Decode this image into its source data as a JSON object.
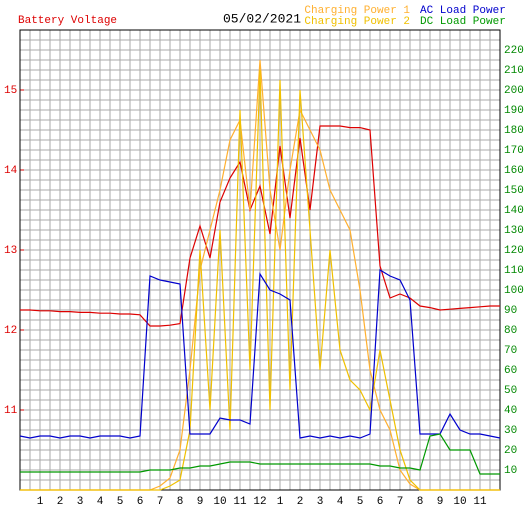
{
  "chart_data": {
    "type": "line",
    "title": "05/02/2021",
    "x": [
      0,
      0.5,
      1,
      1.5,
      2,
      2.5,
      3,
      3.5,
      4,
      4.5,
      5,
      5.5,
      6,
      6.5,
      7,
      7.5,
      8,
      8.5,
      9,
      9.5,
      10,
      10.5,
      11,
      11.5,
      12,
      12.5,
      13,
      13.5,
      14,
      14.5,
      15,
      15.5,
      16,
      16.5,
      17,
      17.5,
      18,
      18.5,
      19,
      19.5,
      20,
      20.5,
      21,
      21.5,
      22,
      22.5,
      23,
      23.5,
      24
    ],
    "xlim": [
      0,
      24
    ],
    "xticks": [
      {
        "value": 1,
        "label": "1"
      },
      {
        "value": 2,
        "label": "2"
      },
      {
        "value": 3,
        "label": "3"
      },
      {
        "value": 4,
        "label": "4"
      },
      {
        "value": 5,
        "label": "5"
      },
      {
        "value": 6,
        "label": "6"
      },
      {
        "value": 7,
        "label": "7"
      },
      {
        "value": 8,
        "label": "8"
      },
      {
        "value": 9,
        "label": "9"
      },
      {
        "value": 10,
        "label": "10"
      },
      {
        "value": 11,
        "label": "11"
      },
      {
        "value": 12,
        "label": "12"
      },
      {
        "value": 13,
        "label": "1"
      },
      {
        "value": 14,
        "label": "2"
      },
      {
        "value": 15,
        "label": "3"
      },
      {
        "value": 16,
        "label": "4"
      },
      {
        "value": 17,
        "label": "5"
      },
      {
        "value": 18,
        "label": "6"
      },
      {
        "value": 19,
        "label": "7"
      },
      {
        "value": 20,
        "label": "8"
      },
      {
        "value": 21,
        "label": "9"
      },
      {
        "value": 22,
        "label": "10"
      },
      {
        "value": 23,
        "label": "11"
      }
    ],
    "ylim": [
      10,
      15.75
    ],
    "yticks": [
      11,
      12,
      13,
      14,
      15
    ],
    "ycolor": "#dd0000",
    "y2lim": [
      0,
      230
    ],
    "y2ticks": [
      10,
      20,
      30,
      40,
      50,
      60,
      70,
      80,
      90,
      100,
      110,
      120,
      130,
      140,
      150,
      160,
      170,
      180,
      190,
      200,
      210,
      220
    ],
    "y2color": "#008800",
    "grid": true,
    "series": [
      {
        "name": "Battery Voltage",
        "color": "#dd0000",
        "axis": "y",
        "values": [
          12.25,
          12.25,
          12.24,
          12.24,
          12.23,
          12.23,
          12.22,
          12.22,
          12.21,
          12.21,
          12.2,
          12.2,
          12.19,
          12.05,
          12.05,
          12.06,
          12.08,
          12.9,
          13.3,
          12.9,
          13.6,
          13.9,
          14.1,
          13.5,
          13.8,
          13.2,
          14.3,
          13.4,
          14.4,
          13.5,
          14.55,
          14.55,
          14.55,
          14.53,
          14.53,
          14.5,
          12.8,
          12.4,
          12.45,
          12.4,
          12.3,
          12.28,
          12.25,
          12.26,
          12.27,
          12.28,
          12.29,
          12.3,
          12.3
        ]
      },
      {
        "name": "Charging Power 1",
        "color": "#ffb030",
        "axis": "y2",
        "values": [
          0,
          0,
          0,
          0,
          0,
          0,
          0,
          0,
          0,
          0,
          0,
          0,
          0,
          0,
          2,
          6,
          20,
          60,
          110,
          130,
          150,
          175,
          185,
          140,
          215,
          150,
          120,
          160,
          190,
          180,
          170,
          150,
          140,
          130,
          100,
          60,
          40,
          30,
          10,
          3,
          0,
          0,
          0,
          0,
          0,
          0,
          0,
          0,
          0
        ]
      },
      {
        "name": "Charging Power 2",
        "color": "#f0c000",
        "axis": "y2",
        "values": [
          0,
          0,
          0,
          0,
          0,
          0,
          0,
          0,
          0,
          0,
          0,
          0,
          0,
          0,
          0,
          2,
          5,
          30,
          120,
          40,
          130,
          30,
          190,
          60,
          210,
          40,
          205,
          50,
          200,
          130,
          60,
          120,
          70,
          55,
          50,
          40,
          70,
          45,
          20,
          5,
          0,
          0,
          0,
          0,
          0,
          0,
          0,
          0,
          0
        ]
      },
      {
        "name": "AC Load Power",
        "color": "#0000cc",
        "axis": "y2",
        "values": [
          27,
          26,
          27,
          27,
          26,
          27,
          27,
          26,
          27,
          27,
          27,
          26,
          27,
          107,
          105,
          104,
          103,
          28,
          28,
          28,
          36,
          35,
          35,
          33,
          108,
          100,
          98,
          95,
          26,
          27,
          26,
          27,
          26,
          27,
          26,
          28,
          110,
          107,
          105,
          95,
          28,
          28,
          28,
          38,
          30,
          28,
          28,
          27,
          26
        ]
      },
      {
        "name": "DC Load Power",
        "color": "#009900",
        "axis": "y2",
        "values": [
          9,
          9,
          9,
          9,
          9,
          9,
          9,
          9,
          9,
          9,
          9,
          9,
          9,
          10,
          10,
          10,
          11,
          11,
          12,
          12,
          13,
          14,
          14,
          14,
          13,
          13,
          13,
          13,
          13,
          13,
          13,
          13,
          13,
          13,
          13,
          13,
          12,
          12,
          11,
          11,
          10,
          27,
          28,
          20,
          20,
          20,
          8,
          8,
          8
        ]
      }
    ]
  }
}
